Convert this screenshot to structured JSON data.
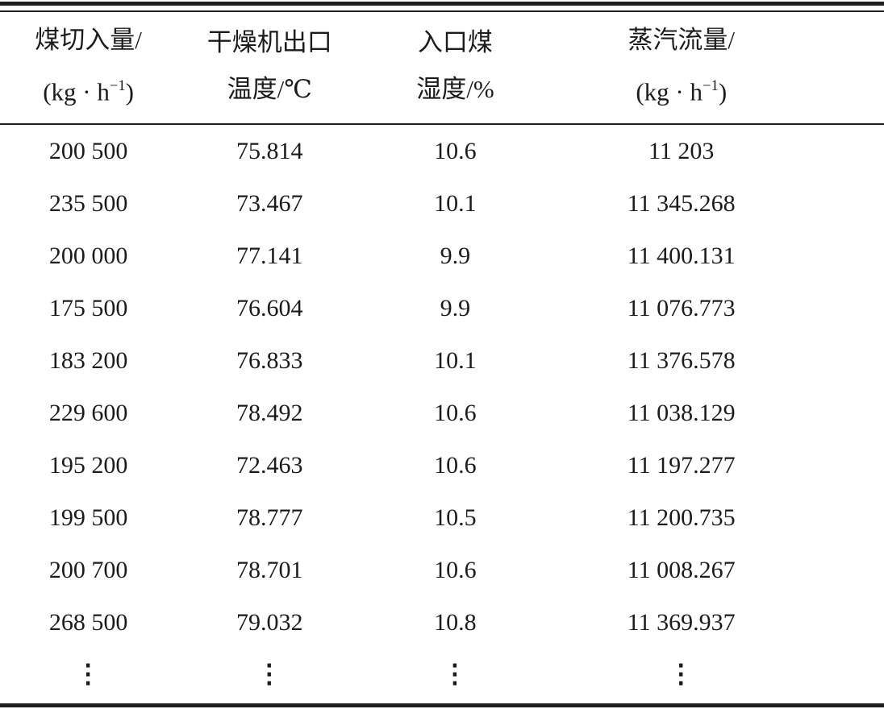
{
  "table": {
    "columns": [
      {
        "title_line1": "煤切入量/",
        "unit_pre": "(kg · h",
        "unit_sup": "−1",
        "unit_post": ")"
      },
      {
        "title_line1": "干燥机出口",
        "title_line2": "温度/℃"
      },
      {
        "title_line1": "入口煤",
        "title_line2": "湿度/%"
      },
      {
        "title_line1": "蒸汽流量/",
        "unit_pre": "(kg · h",
        "unit_sup": "−1",
        "unit_post": ")"
      }
    ],
    "rows": [
      [
        "200 500",
        "75.814",
        "10.6",
        "11 203"
      ],
      [
        "235 500",
        "73.467",
        "10.1",
        "11 345.268"
      ],
      [
        "200 000",
        "77.141",
        "9.9",
        "11 400.131"
      ],
      [
        "175 500",
        "76.604",
        "9.9",
        "11 076.773"
      ],
      [
        "183 200",
        "76.833",
        "10.1",
        "11 376.578"
      ],
      [
        "229 600",
        "78.492",
        "10.6",
        "11 038.129"
      ],
      [
        "195 200",
        "72.463",
        "10.6",
        "11 197.277"
      ],
      [
        "199 500",
        "78.777",
        "10.5",
        "11 200.735"
      ],
      [
        "200 700",
        "78.701",
        "10.6",
        "11 008.267"
      ],
      [
        "268 500",
        "79.032",
        "10.8",
        "11 369.937"
      ]
    ],
    "ellipsis": "⋮"
  },
  "colors": {
    "rule": "#1f1f1f",
    "text": "#1b1b1b",
    "background": "#ffffff"
  }
}
